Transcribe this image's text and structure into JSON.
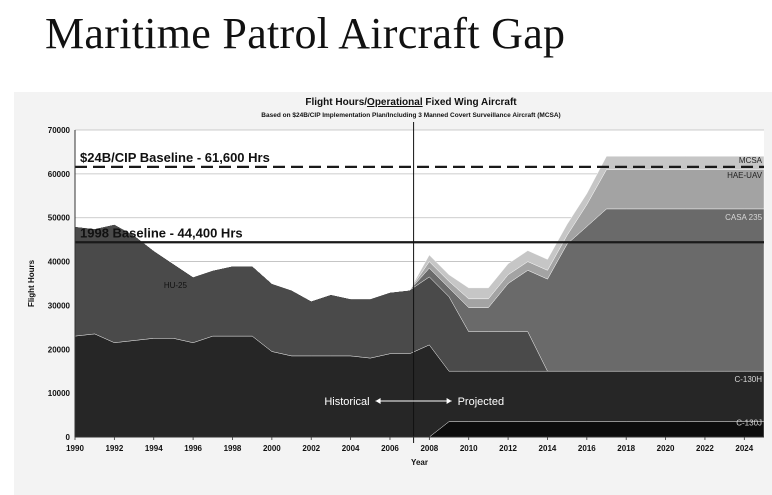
{
  "slide": {
    "title": "Maritime Patrol Aircraft Gap"
  },
  "chart_data": {
    "type": "area",
    "stacked": true,
    "title_parts": [
      "Flight Hours/",
      "Operational",
      " Fixed Wing Aircraft"
    ],
    "subtitle": "Based on $24B/CIP Implementation Plan/Including 3 Manned Covert Surveillance Aircraft (MCSA)",
    "xlabel": "Year",
    "ylabel": "Flight Hours",
    "xlim": [
      1990,
      2025
    ],
    "ylim": [
      0,
      70000
    ],
    "x_ticks": [
      "1990",
      "1992",
      "1994",
      "1996",
      "1998",
      "2000",
      "2002",
      "2004",
      "2006",
      "2008",
      "2010",
      "2012",
      "2014",
      "2016",
      "2018",
      "2020",
      "2022",
      "2024"
    ],
    "y_ticks": [
      "0",
      "10000",
      "20000",
      "30000",
      "40000",
      "50000",
      "60000",
      "70000"
    ],
    "grid": true,
    "divider_year": 2007.2,
    "x": [
      1990,
      1991,
      1992,
      1993,
      1994,
      1995,
      1996,
      1997,
      1998,
      1999,
      2000,
      2001,
      2002,
      2003,
      2004,
      2005,
      2006,
      2007,
      2008,
      2009,
      2010,
      2011,
      2012,
      2013,
      2014,
      2015,
      2016,
      2017,
      2018,
      2019,
      2020,
      2021,
      2022,
      2023,
      2024,
      2025
    ],
    "series": [
      {
        "name": "C-130J",
        "color": "#0d0d0d",
        "values": [
          0,
          0,
          0,
          0,
          0,
          0,
          0,
          0,
          0,
          0,
          0,
          0,
          0,
          0,
          0,
          0,
          0,
          0,
          0,
          3500,
          3500,
          3500,
          3500,
          3500,
          3500,
          3500,
          3500,
          3500,
          3500,
          3500,
          3500,
          3500,
          3500,
          3500,
          3500,
          3500
        ]
      },
      {
        "name": "C-130H",
        "color": "#262626",
        "values": [
          23000,
          23500,
          21500,
          22000,
          22500,
          22500,
          21500,
          23000,
          23000,
          23000,
          19500,
          18500,
          18500,
          18500,
          18500,
          18000,
          19000,
          19000,
          21000,
          11500,
          11500,
          11500,
          11500,
          11500,
          11500,
          11500,
          11500,
          11500,
          11500,
          11500,
          11500,
          11500,
          11500,
          11500,
          11500,
          11500
        ]
      },
      {
        "name": "HU-25",
        "color": "#4a4a4a",
        "values": [
          25000,
          24000,
          27000,
          24000,
          20000,
          17000,
          15000,
          15000,
          16000,
          16000,
          15500,
          15000,
          12500,
          14000,
          13000,
          13500,
          14000,
          14500,
          15500,
          17000,
          9000,
          9000,
          9000,
          9000,
          0,
          0,
          0,
          0,
          0,
          0,
          0,
          0,
          0,
          0,
          0,
          0
        ]
      },
      {
        "name": "CASA 235",
        "color": "#6a6a6a",
        "values": [
          0,
          0,
          0,
          0,
          0,
          0,
          0,
          0,
          0,
          0,
          0,
          0,
          0,
          0,
          0,
          0,
          0,
          0,
          2000,
          2000,
          5500,
          5500,
          11000,
          14000,
          21000,
          29000,
          33000,
          37000,
          37000,
          37000,
          37000,
          37000,
          37000,
          37000,
          37000,
          37000
        ]
      },
      {
        "name": "HAE-UAV",
        "color": "#a3a3a3",
        "values": [
          0,
          0,
          0,
          0,
          0,
          0,
          0,
          0,
          0,
          0,
          0,
          0,
          0,
          0,
          0,
          0,
          0,
          0,
          1500,
          1500,
          2000,
          2000,
          2000,
          2000,
          2000,
          2000,
          5000,
          9000,
          9000,
          9000,
          9000,
          9000,
          9000,
          9000,
          9000,
          9000
        ]
      },
      {
        "name": "MCSA",
        "color": "#c6c6c6",
        "values": [
          0,
          0,
          0,
          0,
          0,
          0,
          0,
          0,
          0,
          0,
          0,
          0,
          0,
          0,
          0,
          0,
          0,
          0,
          1500,
          1500,
          2500,
          2500,
          2500,
          2500,
          2500,
          2500,
          2500,
          3000,
          3000,
          3000,
          3000,
          3000,
          3000,
          3000,
          3000,
          3000
        ]
      }
    ],
    "baselines": [
      {
        "label": "$24B/CIP Baseline - 61,600 Hrs",
        "value": 61600,
        "style": "dashed"
      },
      {
        "label": "1998 Baseline - 44,400 Hrs",
        "value": 44400,
        "style": "solid"
      }
    ],
    "annotations": {
      "historical": "Historical",
      "projected": "Projected"
    }
  }
}
